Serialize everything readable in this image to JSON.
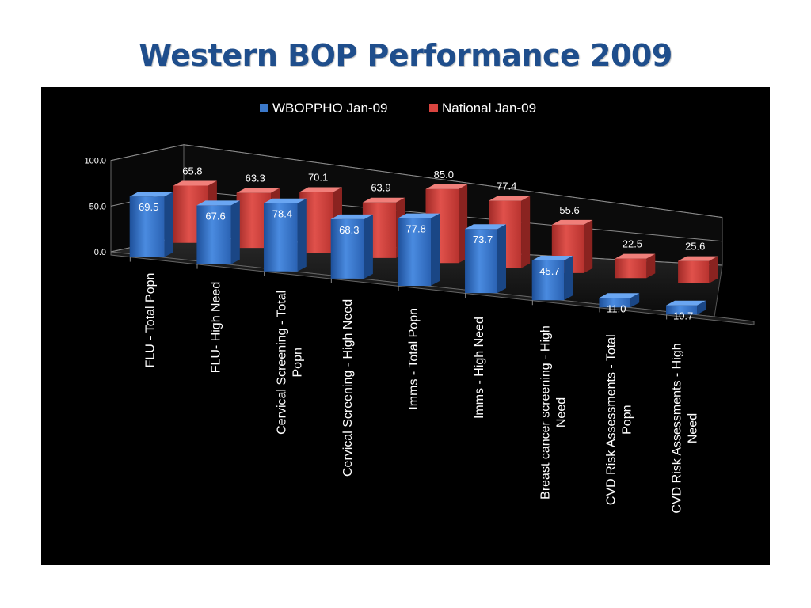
{
  "title": "Western BOP Performance 2009",
  "colors": {
    "title": "#1f4e8c",
    "background": "#000000",
    "series1": "#3b78c9",
    "series2": "#d9443f",
    "text": "#ffffff",
    "gridline": "#7f7f7f"
  },
  "chart_data": {
    "type": "bar",
    "variant": "3d-clustered-column",
    "legend": "top",
    "grid": true,
    "categories": [
      "FLU - Total Popn",
      "FLU- High Need",
      "Cervical Screening - Total Popn",
      "Cervical Screening - High Need",
      "Imms - Total Popn",
      "Imms - High Need",
      "Breast cancer screening - High Need",
      "CVD Risk Assessments - Total Popn",
      "CVD Risk Assessments - High Need"
    ],
    "category_lines": [
      [
        "FLU - Total Popn"
      ],
      [
        "FLU- High Need"
      ],
      [
        "Cervical Screening - Total",
        "Popn"
      ],
      [
        "Cervical Screening - High Need"
      ],
      [
        "Imms - Total Popn"
      ],
      [
        "Imms - High Need"
      ],
      [
        "Breast cancer screening - High",
        "Need"
      ],
      [
        "CVD Risk Assessments - Total",
        "Popn"
      ],
      [
        "CVD Risk Assessments - High",
        "Need"
      ]
    ],
    "series": [
      {
        "name": "WBOPPHO Jan-09",
        "values": [
          69.5,
          67.6,
          78.4,
          68.3,
          77.8,
          73.7,
          45.7,
          11.0,
          10.7
        ],
        "labels": [
          "69.5",
          "67.6",
          "78.4",
          "68.3",
          "77.8",
          "73.7",
          "45.7",
          "11.0",
          "10.7"
        ]
      },
      {
        "name": "National Jan-09",
        "values": [
          65.8,
          63.3,
          70.1,
          63.9,
          85.0,
          77.4,
          55.6,
          22.5,
          25.6
        ],
        "labels": [
          "65.8",
          "63.3",
          "70.1",
          "63.9",
          "85.0",
          "77.4",
          "55.6",
          "22.5",
          "25.6"
        ]
      }
    ],
    "ylim": [
      0,
      100
    ],
    "yticks": [
      "0.0",
      "50.0",
      "100.0"
    ]
  }
}
